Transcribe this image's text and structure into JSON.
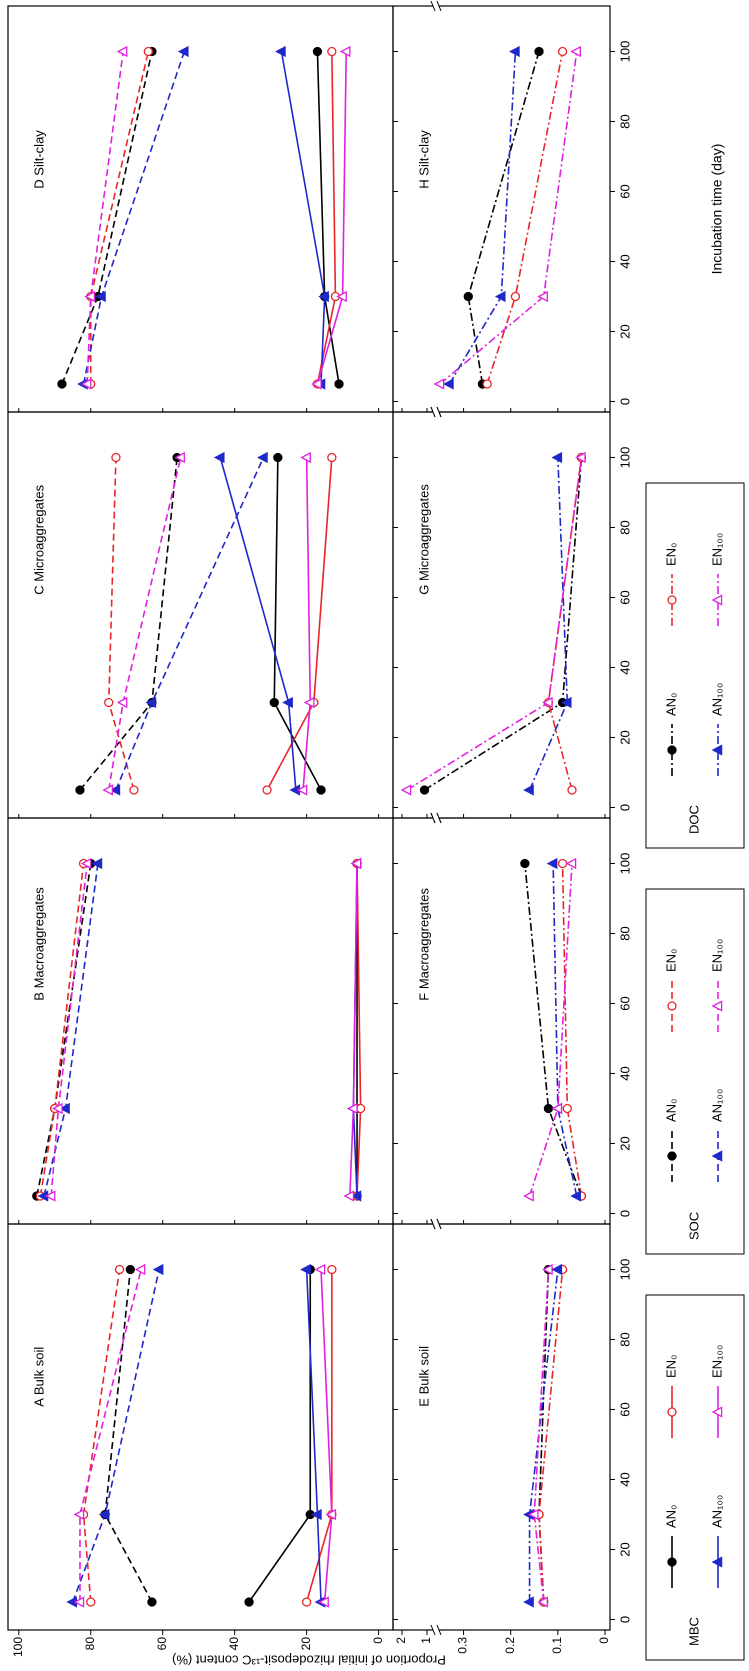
{
  "ylabel": "Proportion of initial rhizodeposit-¹³C content (%)",
  "xlabel": "Incubation time (day)",
  "legends": [
    {
      "title": "MBC",
      "dash": "solid",
      "entries": [
        {
          "name": "AN₀",
          "color": "#000000",
          "marker": "circle-filled"
        },
        {
          "name": "EN₀",
          "color": "#e8262a",
          "marker": "circle-open"
        },
        {
          "name": "AN₁₀₀",
          "color": "#1f28c8",
          "marker": "triangle-filled"
        },
        {
          "name": "EN₁₀₀",
          "color": "#e020e0",
          "marker": "triangle-open"
        }
      ]
    },
    {
      "title": "SOC",
      "dash": "dashed",
      "entries": [
        {
          "name": "AN₀",
          "color": "#000000",
          "marker": "circle-filled"
        },
        {
          "name": "EN₀",
          "color": "#e8262a",
          "marker": "circle-open"
        },
        {
          "name": "AN₁₀₀",
          "color": "#1f28c8",
          "marker": "triangle-filled"
        },
        {
          "name": "EN₁₀₀",
          "color": "#e020e0",
          "marker": "triangle-open"
        }
      ]
    },
    {
      "title": "DOC",
      "dash": "dashdot",
      "entries": [
        {
          "name": "AN₀",
          "color": "#000000",
          "marker": "circle-filled"
        },
        {
          "name": "EN₀",
          "color": "#e8262a",
          "marker": "circle-open"
        },
        {
          "name": "AN₁₀₀",
          "color": "#1f28c8",
          "marker": "triangle-filled"
        },
        {
          "name": "EN₁₀₀",
          "color": "#e020e0",
          "marker": "triangle-open"
        }
      ]
    }
  ],
  "chart_data": [
    {
      "type": "line",
      "title": "A  Bulk soil",
      "x": [
        5,
        30,
        100
      ],
      "xlim": [
        -3,
        113
      ],
      "xticks": [
        0,
        20,
        40,
        60,
        80,
        100
      ],
      "ylim": [
        -4,
        103
      ],
      "yticks": [
        0,
        20,
        40,
        60,
        80,
        100
      ],
      "series": [
        {
          "color": "#000000",
          "marker": "circle-filled",
          "dash": "solid",
          "values": [
            36,
            19,
            19
          ]
        },
        {
          "color": "#e8262a",
          "marker": "circle-open",
          "dash": "solid",
          "values": [
            20,
            13,
            13
          ]
        },
        {
          "color": "#1f28c8",
          "marker": "triangle-filled",
          "dash": "solid",
          "values": [
            16,
            17,
            20
          ]
        },
        {
          "color": "#e020e0",
          "marker": "triangle-open",
          "dash": "solid",
          "values": [
            15,
            13,
            16
          ]
        },
        {
          "color": "#000000",
          "marker": "circle-filled",
          "dash": "dashed",
          "values": [
            63,
            76,
            69
          ]
        },
        {
          "color": "#e8262a",
          "marker": "circle-open",
          "dash": "dashed",
          "values": [
            80,
            82,
            72
          ]
        },
        {
          "color": "#1f28c8",
          "marker": "triangle-filled",
          "dash": "dashed",
          "values": [
            85,
            76,
            61
          ]
        },
        {
          "color": "#e020e0",
          "marker": "triangle-open",
          "dash": "dashed",
          "values": [
            83,
            83,
            66
          ]
        }
      ]
    },
    {
      "type": "line",
      "title": "B  Macroaggregates",
      "x": [
        5,
        30,
        100
      ],
      "xlim": [
        -3,
        113
      ],
      "xticks": [
        0,
        20,
        40,
        60,
        80,
        100
      ],
      "ylim": [
        -4,
        103
      ],
      "yticks": [
        0,
        20,
        40,
        60,
        80,
        100
      ],
      "series": [
        {
          "color": "#000000",
          "marker": "circle-filled",
          "dash": "solid",
          "values": [
            6,
            6,
            6
          ]
        },
        {
          "color": "#e8262a",
          "marker": "circle-open",
          "dash": "solid",
          "values": [
            6,
            5,
            6
          ]
        },
        {
          "color": "#1f28c8",
          "marker": "triangle-filled",
          "dash": "solid",
          "values": [
            6,
            7,
            6
          ]
        },
        {
          "color": "#e020e0",
          "marker": "triangle-open",
          "dash": "solid",
          "values": [
            8,
            7,
            6
          ]
        },
        {
          "color": "#000000",
          "marker": "circle-filled",
          "dash": "dashed",
          "values": [
            95,
            90,
            80
          ]
        },
        {
          "color": "#e8262a",
          "marker": "circle-open",
          "dash": "dashed",
          "values": [
            94,
            90,
            82
          ]
        },
        {
          "color": "#1f28c8",
          "marker": "triangle-filled",
          "dash": "dashed",
          "values": [
            93,
            87,
            78
          ]
        },
        {
          "color": "#e020e0",
          "marker": "triangle-open",
          "dash": "dashed",
          "values": [
            91,
            89,
            81
          ]
        }
      ]
    },
    {
      "type": "line",
      "title": "C  Microaggregates",
      "x": [
        5,
        30,
        100
      ],
      "xlim": [
        -3,
        113
      ],
      "xticks": [
        0,
        20,
        40,
        60,
        80,
        100
      ],
      "ylim": [
        -4,
        103
      ],
      "yticks": [
        0,
        20,
        40,
        60,
        80,
        100
      ],
      "series": [
        {
          "color": "#000000",
          "marker": "circle-filled",
          "dash": "solid",
          "values": [
            16,
            29,
            28
          ]
        },
        {
          "color": "#e8262a",
          "marker": "circle-open",
          "dash": "solid",
          "values": [
            31,
            18,
            13
          ]
        },
        {
          "color": "#1f28c8",
          "marker": "triangle-filled",
          "dash": "solid",
          "values": [
            23,
            25,
            44
          ]
        },
        {
          "color": "#e020e0",
          "marker": "triangle-open",
          "dash": "solid",
          "values": [
            21,
            19,
            20
          ]
        },
        {
          "color": "#000000",
          "marker": "circle-filled",
          "dash": "dashed",
          "values": [
            83,
            63,
            56
          ]
        },
        {
          "color": "#e8262a",
          "marker": "circle-open",
          "dash": "dashed",
          "values": [
            68,
            75,
            73
          ]
        },
        {
          "color": "#1f28c8",
          "marker": "triangle-filled",
          "dash": "dashed",
          "values": [
            73,
            63,
            32
          ]
        },
        {
          "color": "#e020e0",
          "marker": "triangle-open",
          "dash": "dashed",
          "values": [
            75,
            71,
            55
          ]
        }
      ]
    },
    {
      "type": "line",
      "title": "D  Silt-clay",
      "x": [
        5,
        30,
        100
      ],
      "xlim": [
        -3,
        113
      ],
      "xticks": [
        0,
        20,
        40,
        60,
        80,
        100
      ],
      "ylim": [
        -4,
        103
      ],
      "yticks": [
        0,
        20,
        40,
        60,
        80,
        100
      ],
      "series": [
        {
          "color": "#000000",
          "marker": "circle-filled",
          "dash": "solid",
          "values": [
            11,
            15,
            17
          ]
        },
        {
          "color": "#e8262a",
          "marker": "circle-open",
          "dash": "solid",
          "values": [
            17,
            12,
            13
          ]
        },
        {
          "color": "#1f28c8",
          "marker": "triangle-filled",
          "dash": "solid",
          "values": [
            16,
            15,
            27
          ]
        },
        {
          "color": "#e020e0",
          "marker": "triangle-open",
          "dash": "solid",
          "values": [
            17,
            10,
            9
          ]
        },
        {
          "color": "#000000",
          "marker": "circle-filled",
          "dash": "dashed",
          "values": [
            88,
            78,
            63
          ]
        },
        {
          "color": "#e8262a",
          "marker": "circle-open",
          "dash": "dashed",
          "values": [
            80,
            80,
            64
          ]
        },
        {
          "color": "#1f28c8",
          "marker": "triangle-filled",
          "dash": "dashed",
          "values": [
            82,
            77,
            54
          ]
        },
        {
          "color": "#e020e0",
          "marker": "triangle-open",
          "dash": "dashed",
          "values": [
            81,
            80,
            71
          ]
        }
      ]
    },
    {
      "type": "line",
      "title": "E  Bulk soil",
      "x": [
        5,
        30,
        100
      ],
      "xlim": [
        -3,
        113
      ],
      "xticks": [
        0,
        20,
        40,
        60,
        80,
        100
      ],
      "ylim": [
        0,
        2.2
      ],
      "axis_break": [
        0.35,
        0.8
      ],
      "yticks": [
        0,
        0.1,
        0.2,
        0.3,
        1,
        2
      ],
      "series": [
        {
          "color": "#000000",
          "marker": "circle-filled",
          "dash": "dashdot",
          "values": [
            0.13,
            0.14,
            0.12
          ]
        },
        {
          "color": "#e8262a",
          "marker": "circle-open",
          "dash": "dashdot",
          "values": [
            0.13,
            0.14,
            0.09
          ]
        },
        {
          "color": "#1f28c8",
          "marker": "triangle-filled",
          "dash": "dashdot",
          "values": [
            0.16,
            0.16,
            0.1
          ]
        },
        {
          "color": "#e020e0",
          "marker": "triangle-open",
          "dash": "dashdot",
          "values": [
            0.13,
            0.15,
            0.12
          ]
        }
      ]
    },
    {
      "type": "line",
      "title": "F  Macroaggregates",
      "x": [
        5,
        30,
        100
      ],
      "xlim": [
        -3,
        113
      ],
      "xticks": [
        0,
        20,
        40,
        60,
        80,
        100
      ],
      "ylim": [
        0,
        2.2
      ],
      "axis_break": [
        0.35,
        0.8
      ],
      "yticks": [
        0,
        0.1,
        0.2,
        0.3,
        1,
        2
      ],
      "series": [
        {
          "color": "#000000",
          "marker": "circle-filled",
          "dash": "dashdot",
          "values": [
            0.05,
            0.12,
            0.17
          ]
        },
        {
          "color": "#e8262a",
          "marker": "circle-open",
          "dash": "dashdot",
          "values": [
            0.05,
            0.08,
            0.09
          ]
        },
        {
          "color": "#1f28c8",
          "marker": "triangle-filled",
          "dash": "dashdot",
          "values": [
            0.06,
            0.1,
            0.11
          ]
        },
        {
          "color": "#e020e0",
          "marker": "triangle-open",
          "dash": "dashdot",
          "values": [
            0.16,
            0.1,
            0.07
          ]
        }
      ]
    },
    {
      "type": "line",
      "title": "G  Microaggregates",
      "x": [
        5,
        30,
        100
      ],
      "xlim": [
        -3,
        113
      ],
      "xticks": [
        0,
        20,
        40,
        60,
        80,
        100
      ],
      "ylim": [
        0,
        2.2
      ],
      "axis_break": [
        0.35,
        0.8
      ],
      "yticks": [
        0,
        0.1,
        0.2,
        0.3,
        1,
        2
      ],
      "series": [
        {
          "color": "#000000",
          "marker": "circle-filled",
          "dash": "dashdot",
          "values": [
            1.1,
            0.09,
            0.05
          ]
        },
        {
          "color": "#e8262a",
          "marker": "circle-open",
          "dash": "dashdot",
          "values": [
            0.07,
            0.12,
            0.05
          ]
        },
        {
          "color": "#1f28c8",
          "marker": "triangle-filled",
          "dash": "dashdot",
          "values": [
            0.16,
            0.08,
            0.1
          ]
        },
        {
          "color": "#e020e0",
          "marker": "triangle-open",
          "dash": "dashdot",
          "values": [
            1.8,
            0.12,
            0.05
          ]
        }
      ]
    },
    {
      "type": "line",
      "title": "H  Silt-clay",
      "x": [
        5,
        30,
        100
      ],
      "xlim": [
        -3,
        113
      ],
      "xticks": [
        0,
        20,
        40,
        60,
        80,
        100
      ],
      "ylim": [
        0,
        2.2
      ],
      "axis_break": [
        0.35,
        0.8
      ],
      "yticks": [
        0,
        0.1,
        0.2,
        0.3,
        1,
        2
      ],
      "series": [
        {
          "color": "#000000",
          "marker": "circle-filled",
          "dash": "dashdot",
          "values": [
            0.26,
            0.29,
            0.14
          ]
        },
        {
          "color": "#e8262a",
          "marker": "circle-open",
          "dash": "dashdot",
          "values": [
            0.25,
            0.19,
            0.09
          ]
        },
        {
          "color": "#1f28c8",
          "marker": "triangle-filled",
          "dash": "dashdot",
          "values": [
            0.33,
            0.22,
            0.19
          ]
        },
        {
          "color": "#e020e0",
          "marker": "triangle-open",
          "dash": "dashdot",
          "values": [
            0.35,
            0.13,
            0.06
          ]
        }
      ]
    }
  ]
}
